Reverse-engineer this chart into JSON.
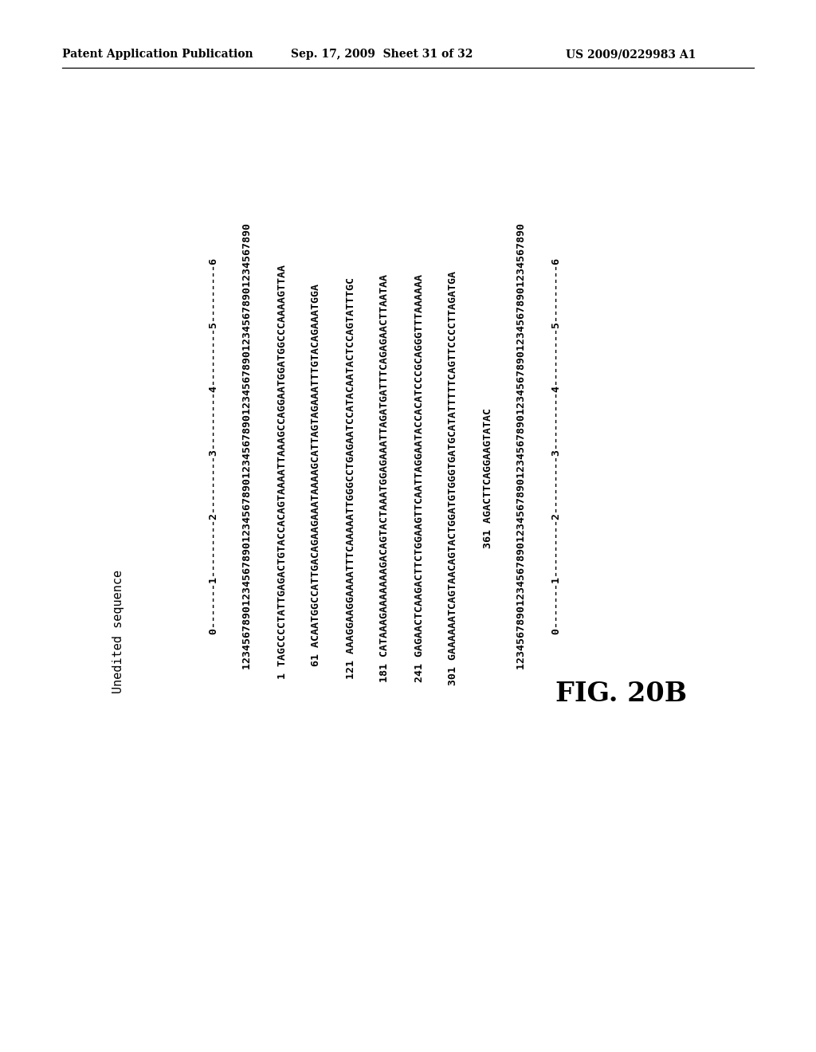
{
  "header_left": "Patent Application Publication",
  "header_center": "Sep. 17, 2009  Sheet 31 of 32",
  "header_right": "US 2009/0229983 A1",
  "section_title": "Unedited sequence",
  "content_lines": [
    "          0-------1---------2---------3---------4---------5---------6",
    "          1234567890123456789012345678901234567890123456789012345678901234567890",
    "  1 TAGCCCCTATTGAGACTGTACCACAGTAAAATTAAAGCCAGGAATGGATGGCCCAAAAGTTAA",
    " 61 ACAATGGCCATTGACAGAAGAAATAAAAGCATTAGTAGAAATTTGTACAGAAATGGA",
    "121 AAAGGAAGGAAAATTTCAAAAATTGGGCCTGAGAATCCATACAATACTCCAGTATTTGC",
    "181 CATAAAGAAAAAAAGACAGTACTAAATGGAGAAATTAGATGATTTCAGAGAACTTAATAA",
    "241 GAGAACTCAAGACTTCTGGAAGTTCAATTAGGAATACCACATCCCGCAGGGTTTAAAAAA",
    "301 GAAAAAATCAGTAACAGTACTGGATGTGGGTGATGCATATTTTTCAGTTCCCCTTAGATGA",
    "361 AGACTTCAGGAAGTATAC",
    "          1234567890123456789012345678901234567890123456789012345678901234567890",
    "          0-------1---------2---------3---------4---------5---------6"
  ],
  "fig_label": "FIG. 20B",
  "background_color": "#ffffff",
  "text_color": "#000000",
  "header_fontsize": 10,
  "seq_fontsize": 9.5,
  "title_fontsize": 11,
  "fig_fontsize": 24
}
